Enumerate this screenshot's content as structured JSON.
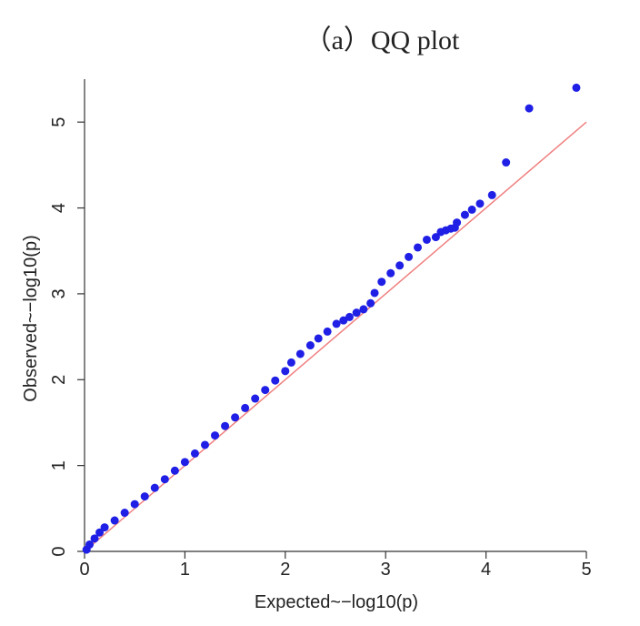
{
  "chart_data": {
    "type": "scatter",
    "title": "（a）QQ plot",
    "x_label": "Expected~−log10(p)",
    "y_label": "Observed~−log10(p)",
    "x": [
      0.02,
      0.05,
      0.1,
      0.15,
      0.2,
      0.3,
      0.4,
      0.5,
      0.6,
      0.7,
      0.8,
      0.9,
      1.0,
      1.1,
      1.2,
      1.3,
      1.4,
      1.5,
      1.6,
      1.7,
      1.8,
      1.9,
      2.0,
      2.06,
      2.15,
      2.25,
      2.33,
      2.42,
      2.51,
      2.58,
      2.64,
      2.71,
      2.78,
      2.85,
      2.89,
      2.96,
      3.05,
      3.14,
      3.23,
      3.32,
      3.41,
      3.5,
      3.55,
      3.6,
      3.65,
      3.69,
      3.71,
      3.79,
      3.86,
      3.94,
      4.06,
      4.2,
      4.43,
      4.9
    ],
    "values": [
      0.02,
      0.08,
      0.15,
      0.22,
      0.28,
      0.36,
      0.45,
      0.55,
      0.64,
      0.74,
      0.84,
      0.94,
      1.04,
      1.14,
      1.24,
      1.35,
      1.46,
      1.56,
      1.67,
      1.78,
      1.88,
      1.99,
      2.1,
      2.2,
      2.3,
      2.4,
      2.48,
      2.56,
      2.65,
      2.69,
      2.73,
      2.78,
      2.82,
      2.89,
      3.01,
      3.14,
      3.24,
      3.33,
      3.43,
      3.54,
      3.63,
      3.66,
      3.72,
      3.74,
      3.76,
      3.77,
      3.83,
      3.92,
      3.98,
      4.05,
      4.15,
      4.53,
      5.16,
      5.4
    ],
    "color": "#1f1fe6",
    "reference_line": {
      "x": [
        0,
        5
      ],
      "y": [
        0,
        5
      ],
      "color": "#f08080"
    },
    "xlim": [
      0,
      5
    ],
    "ylim": [
      0,
      5.5
    ],
    "xticks": [
      0,
      1,
      2,
      3,
      4,
      5
    ],
    "yticks": [
      0,
      1,
      2,
      3,
      4,
      5
    ]
  }
}
